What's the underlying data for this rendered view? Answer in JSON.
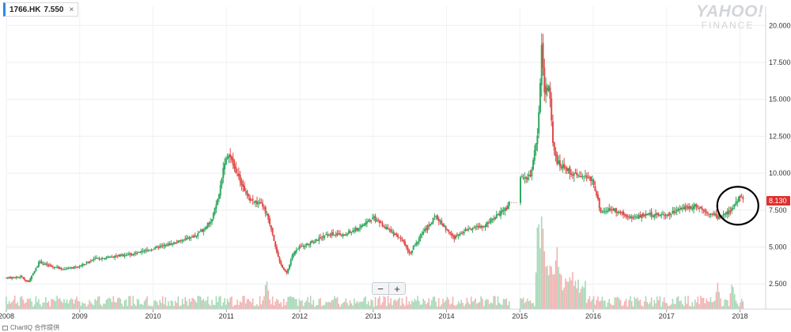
{
  "symbol_chip": {
    "symbol": "1766.HK",
    "price": "7.550",
    "close_glyph": "×"
  },
  "logo": {
    "line1": "YAHOO!",
    "line2": "FINANCE"
  },
  "zoom": {
    "minus": "−",
    "plus": "+"
  },
  "credit": {
    "text": "ChartIQ 合作提供"
  },
  "last_price_label": {
    "text": "8.130",
    "color": "#e0302c"
  },
  "chart_data": {
    "type": "candlestick",
    "title": "",
    "xlabel": "",
    "ylabel": "",
    "y_ticks": [
      2.5,
      5.0,
      7.5,
      10.0,
      12.5,
      15.0,
      17.5,
      20.0
    ],
    "y_tick_labels": [
      "2.500",
      "5.000",
      "7.500",
      "10.000",
      "12.500",
      "15.000",
      "17.500",
      "20.000"
    ],
    "ylim": [
      0.8,
      21.3
    ],
    "xlim": [
      2008.0,
      2018.35
    ],
    "x_ticks": [
      2008.0,
      2009.0,
      2010.0,
      2011.0,
      2012.0,
      2013.0,
      2014.0,
      2015.0,
      2016.0,
      2017.0,
      2018.0
    ],
    "x_tick_labels": [
      "2008",
      "2009",
      "2010",
      "2011",
      "2012",
      "2013",
      "2014",
      "2015",
      "2016",
      "2017",
      "2018"
    ],
    "grid": true,
    "colors": {
      "up": "#30a860",
      "down": "#e04b4b",
      "volume_up": "#a8d9b8",
      "volume_down": "#f2b3b3"
    },
    "annotation": {
      "type": "circle",
      "x": 2017.97,
      "y": 7.8,
      "note": "hand-drawn circle around recent rise"
    },
    "price_path": [
      [
        2008.0,
        2.9
      ],
      [
        2008.2,
        3.0
      ],
      [
        2008.3,
        2.6
      ],
      [
        2008.45,
        4.0
      ],
      [
        2008.6,
        3.7
      ],
      [
        2008.8,
        3.5
      ],
      [
        2009.0,
        3.7
      ],
      [
        2009.2,
        4.2
      ],
      [
        2009.5,
        4.4
      ],
      [
        2009.8,
        4.6
      ],
      [
        2010.0,
        4.9
      ],
      [
        2010.3,
        5.3
      ],
      [
        2010.6,
        5.8
      ],
      [
        2010.8,
        6.8
      ],
      [
        2010.9,
        8.6
      ],
      [
        2010.97,
        10.8
      ],
      [
        2011.05,
        11.1
      ],
      [
        2011.12,
        10.2
      ],
      [
        2011.3,
        8.3
      ],
      [
        2011.5,
        7.8
      ],
      [
        2011.6,
        6.5
      ],
      [
        2011.72,
        4.0
      ],
      [
        2011.82,
        3.2
      ],
      [
        2011.9,
        4.5
      ],
      [
        2012.0,
        5.0
      ],
      [
        2012.2,
        5.4
      ],
      [
        2012.4,
        5.9
      ],
      [
        2012.6,
        5.8
      ],
      [
        2012.8,
        6.3
      ],
      [
        2013.0,
        7.0
      ],
      [
        2013.2,
        6.2
      ],
      [
        2013.4,
        5.4
      ],
      [
        2013.5,
        4.6
      ],
      [
        2013.65,
        5.8
      ],
      [
        2013.85,
        7.1
      ],
      [
        2014.1,
        5.6
      ],
      [
        2014.3,
        6.3
      ],
      [
        2014.5,
        6.4
      ],
      [
        2014.65,
        7.0
      ],
      [
        2014.82,
        7.6
      ],
      [
        2014.86,
        8.0
      ],
      [
        2015.02,
        9.8
      ],
      [
        2015.15,
        9.8
      ],
      [
        2015.25,
        13.0
      ],
      [
        2015.3,
        19.2
      ],
      [
        2015.33,
        15.5
      ],
      [
        2015.4,
        16.0
      ],
      [
        2015.45,
        12.0
      ],
      [
        2015.5,
        10.8
      ],
      [
        2015.7,
        10.0
      ],
      [
        2015.85,
        9.8
      ],
      [
        2016.0,
        9.5
      ],
      [
        2016.1,
        7.4
      ],
      [
        2016.25,
        7.6
      ],
      [
        2016.5,
        7.0
      ],
      [
        2016.75,
        7.2
      ],
      [
        2017.0,
        7.2
      ],
      [
        2017.2,
        7.6
      ],
      [
        2017.4,
        7.8
      ],
      [
        2017.55,
        7.4
      ],
      [
        2017.7,
        7.0
      ],
      [
        2017.82,
        7.3
      ],
      [
        2017.9,
        7.6
      ],
      [
        2018.0,
        8.5
      ],
      [
        2018.06,
        8.13
      ]
    ],
    "gaps": [
      [
        2014.86,
        2015.0
      ]
    ],
    "volume_spikes": [
      [
        2015.25,
        0.85
      ],
      [
        2015.3,
        1.0
      ],
      [
        2015.33,
        0.6
      ],
      [
        2015.5,
        0.55
      ],
      [
        2015.4,
        0.35
      ],
      [
        2011.55,
        0.35
      ],
      [
        2017.7,
        0.3
      ],
      [
        2017.9,
        0.3
      ],
      [
        2015.7,
        0.2
      ]
    ]
  }
}
